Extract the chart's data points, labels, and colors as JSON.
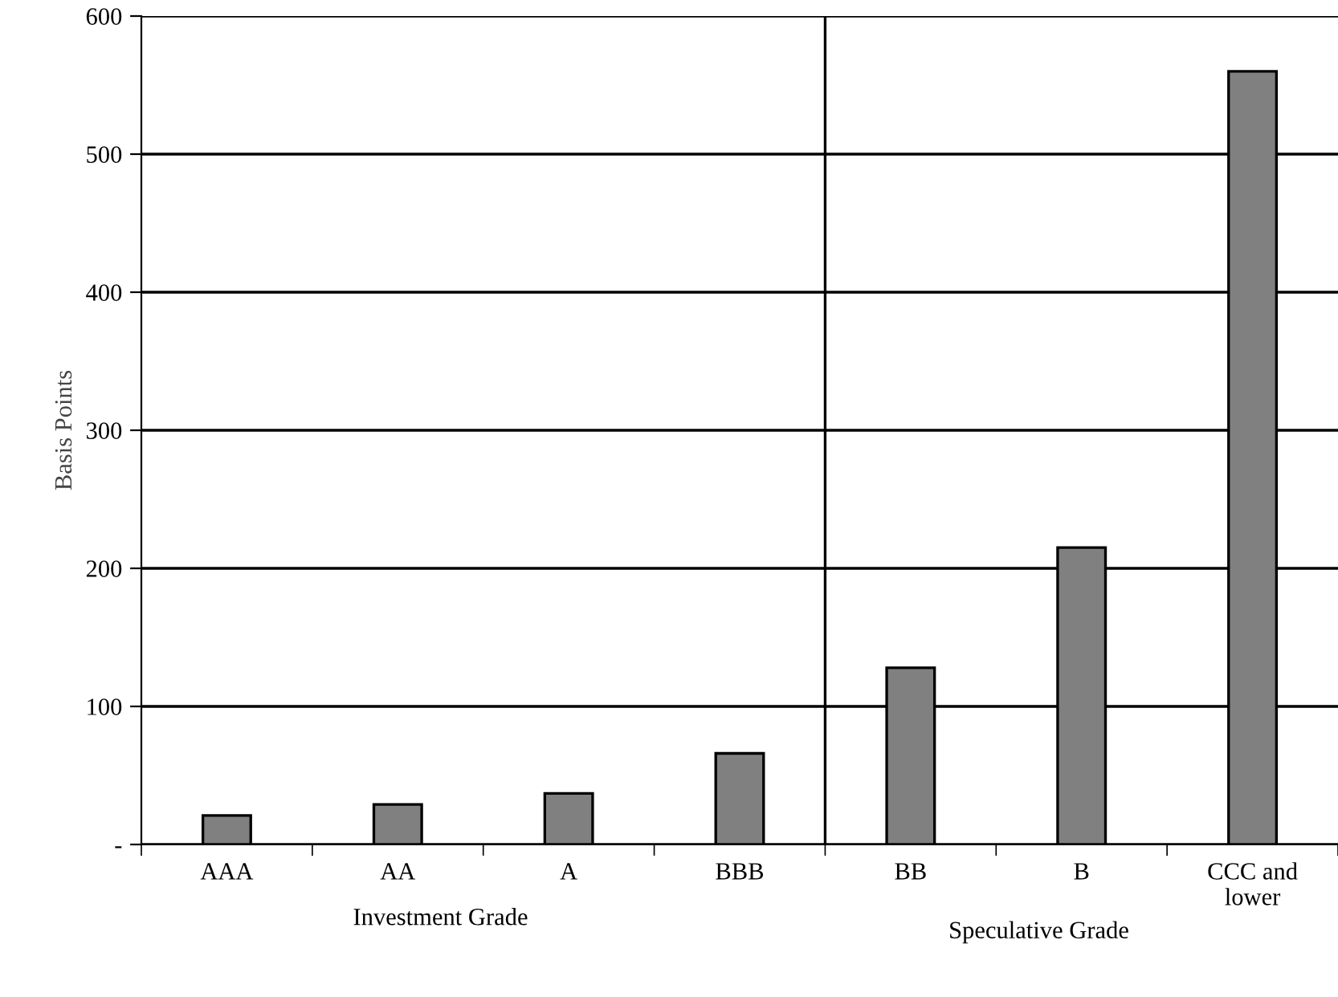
{
  "chart_data": {
    "type": "bar",
    "ylabel": "Basis Points",
    "categories": [
      "AAA",
      "AA",
      "A",
      "BBB",
      "BB",
      "B",
      "CCC and\nlower"
    ],
    "values": [
      21,
      29,
      37,
      66,
      128,
      215,
      560
    ],
    "color": "#808080",
    "ylim": [
      0,
      600
    ],
    "yticks": [
      {
        "value": 0,
        "label": "-"
      },
      100,
      200,
      300,
      400,
      500,
      600
    ],
    "grid": "y",
    "annotations": [
      "Investment Grade",
      "Speculative Grade"
    ]
  }
}
